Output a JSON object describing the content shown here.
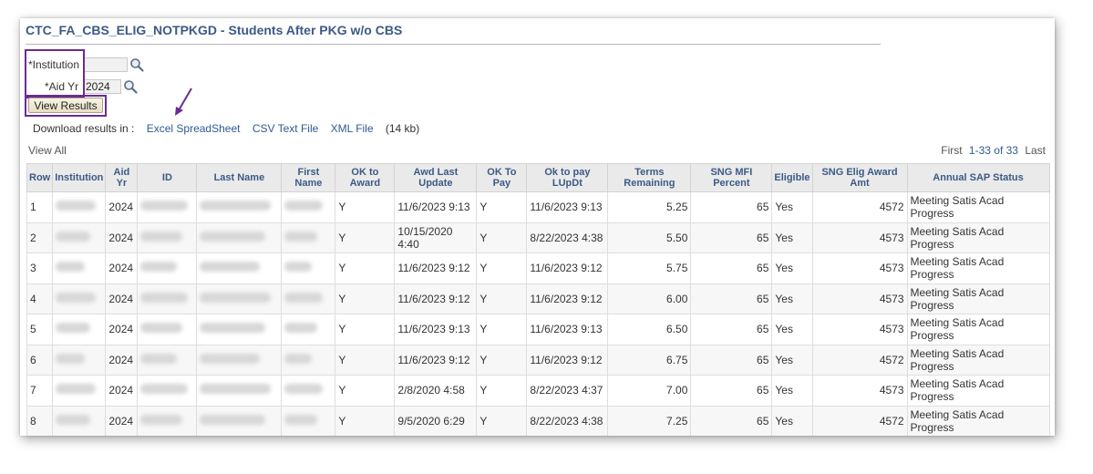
{
  "page": {
    "title": "CTC_FA_CBS_ELIG_NOTPKGD - Students After PKG w/o CBS"
  },
  "criteria": {
    "institution_label": "*Institution",
    "institution_value": "",
    "aid_yr_label": "*Aid Yr",
    "aid_yr_value": "2024",
    "view_results_label": "View Results"
  },
  "download": {
    "prefix": "Download results in :",
    "excel": "Excel SpreadSheet",
    "csv": "CSV Text File",
    "xml": "XML File",
    "size": "(14 kb)"
  },
  "grid": {
    "view_all": "View All",
    "pager": {
      "first": "First",
      "range": "1-33 of 33",
      "last": "Last"
    },
    "headers": {
      "row": "Row",
      "institution": "Institution",
      "aid_yr": "Aid Yr",
      "id": "ID",
      "last_name": "Last Name",
      "first_name": "First Name",
      "ok_to_award": "OK to Award",
      "awd_last_update": "Awd Last Update",
      "ok_to_pay": "OK To Pay",
      "ok_to_pay_lupdt": "Ok to pay LUpDt",
      "terms_remaining": "Terms Remaining",
      "sng_mfi_percent": "SNG MFI Percent",
      "eligible": "Eligible",
      "sng_elig_award_amt": "SNG Elig Award Amt",
      "annual_sap_status": "Annual SAP Status"
    },
    "rows": [
      {
        "row": "1",
        "aid_yr": "2024",
        "ok_to_award": "Y",
        "awd_last_update": "11/6/2023 9:13",
        "ok_to_pay": "Y",
        "ok_to_pay_lupdt": "11/6/2023 9:13",
        "terms_remaining": "5.25",
        "sng_mfi_percent": "65",
        "eligible": "Yes",
        "sng_elig_award_amt": "4572",
        "annual_sap_status": "Meeting Satis Acad Progress"
      },
      {
        "row": "2",
        "aid_yr": "2024",
        "ok_to_award": "Y",
        "awd_last_update": "10/15/2020 4:40",
        "ok_to_pay": "Y",
        "ok_to_pay_lupdt": "8/22/2023 4:38",
        "terms_remaining": "5.50",
        "sng_mfi_percent": "65",
        "eligible": "Yes",
        "sng_elig_award_amt": "4573",
        "annual_sap_status": "Meeting Satis Acad Progress"
      },
      {
        "row": "3",
        "aid_yr": "2024",
        "ok_to_award": "Y",
        "awd_last_update": "11/6/2023 9:12",
        "ok_to_pay": "Y",
        "ok_to_pay_lupdt": "11/6/2023 9:12",
        "terms_remaining": "5.75",
        "sng_mfi_percent": "65",
        "eligible": "Yes",
        "sng_elig_award_amt": "4573",
        "annual_sap_status": "Meeting Satis Acad Progress"
      },
      {
        "row": "4",
        "aid_yr": "2024",
        "ok_to_award": "Y",
        "awd_last_update": "11/6/2023 9:12",
        "ok_to_pay": "Y",
        "ok_to_pay_lupdt": "11/6/2023 9:12",
        "terms_remaining": "6.00",
        "sng_mfi_percent": "65",
        "eligible": "Yes",
        "sng_elig_award_amt": "4573",
        "annual_sap_status": "Meeting Satis Acad Progress"
      },
      {
        "row": "5",
        "aid_yr": "2024",
        "ok_to_award": "Y",
        "awd_last_update": "11/6/2023 9:13",
        "ok_to_pay": "Y",
        "ok_to_pay_lupdt": "11/6/2023 9:13",
        "terms_remaining": "6.50",
        "sng_mfi_percent": "65",
        "eligible": "Yes",
        "sng_elig_award_amt": "4573",
        "annual_sap_status": "Meeting Satis Acad Progress"
      },
      {
        "row": "6",
        "aid_yr": "2024",
        "ok_to_award": "Y",
        "awd_last_update": "11/6/2023 9:12",
        "ok_to_pay": "Y",
        "ok_to_pay_lupdt": "11/6/2023 9:12",
        "terms_remaining": "6.75",
        "sng_mfi_percent": "65",
        "eligible": "Yes",
        "sng_elig_award_amt": "4572",
        "annual_sap_status": "Meeting Satis Acad Progress"
      },
      {
        "row": "7",
        "aid_yr": "2024",
        "ok_to_award": "Y",
        "awd_last_update": "2/8/2020 4:58",
        "ok_to_pay": "Y",
        "ok_to_pay_lupdt": "8/22/2023 4:37",
        "terms_remaining": "7.00",
        "sng_mfi_percent": "65",
        "eligible": "Yes",
        "sng_elig_award_amt": "4573",
        "annual_sap_status": "Meeting Satis Acad Progress"
      },
      {
        "row": "8",
        "aid_yr": "2024",
        "ok_to_award": "Y",
        "awd_last_update": "9/5/2020 6:29",
        "ok_to_pay": "Y",
        "ok_to_pay_lupdt": "8/22/2023 4:38",
        "terms_remaining": "7.25",
        "sng_mfi_percent": "65",
        "eligible": "Yes",
        "sng_elig_award_amt": "4572",
        "annual_sap_status": "Meeting Satis Acad Progress"
      }
    ]
  },
  "colors": {
    "title": "#3c5a86",
    "link": "#2e5a91",
    "highlight_box": "#6b2c8f",
    "header_bg": "#eaeaea"
  },
  "icons": {
    "lookup": "magnifier-icon",
    "annotation": "arrow-icon"
  }
}
